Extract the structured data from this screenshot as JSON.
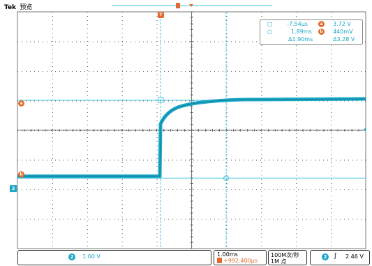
{
  "header": {
    "brand": "Tek",
    "mode": "预览"
  },
  "cursor_readout": {
    "t1": "-7.54μs",
    "t2": "1.89ms",
    "dt": "Δ1.90ms",
    "v_a": "3.72 V",
    "v_b": "440mV",
    "dv": "Δ3.28 V",
    "label_a": "a",
    "label_b": "b"
  },
  "markers": {
    "trigger_pos": "T",
    "cursor_a": "a",
    "cursor_b": "b",
    "channel": "2"
  },
  "bottom": {
    "channel_num": "2",
    "channel_scale": "1.00 V",
    "timebase": "1.00ms",
    "offset": "+992.400μs",
    "sample_rate": "100M次/秒",
    "record_length": "1M 点",
    "trig_channel": "2",
    "trig_slope": "ʃ",
    "trig_level": "2.46 V"
  },
  "colors": {
    "trace": "#1aa7c6",
    "cursor": "#49c4e0",
    "marker": "#e06a2b",
    "grid": "#555555"
  }
}
